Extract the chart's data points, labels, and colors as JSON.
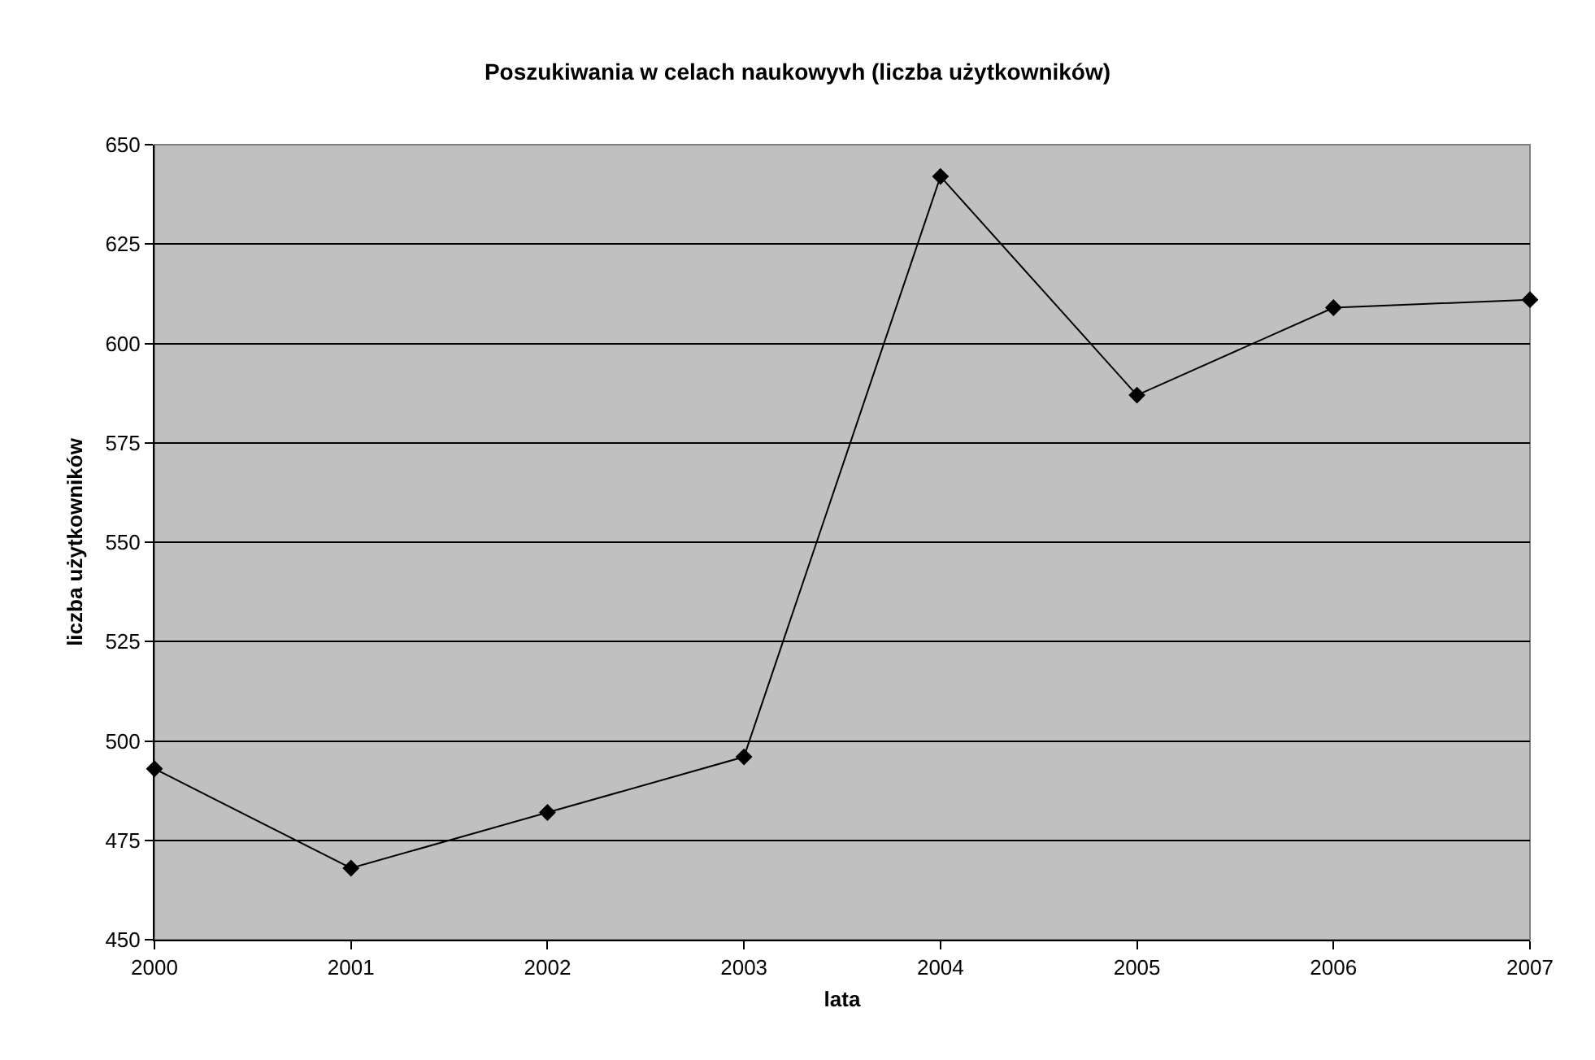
{
  "chart_data": {
    "type": "line",
    "title": "Poszukiwania w celach naukowyvh (liczba użytkowników)",
    "xlabel": "lata",
    "ylabel": "liczba użytkowników",
    "x": [
      2000,
      2001,
      2002,
      2003,
      2004,
      2005,
      2006,
      2007
    ],
    "series": [
      {
        "color": "#000000",
        "values": [
          493,
          468,
          482,
          496,
          642,
          587,
          609,
          611
        ]
      }
    ],
    "xlim": [
      2000,
      2007
    ],
    "xticks": [
      2000,
      2001,
      2002,
      2003,
      2004,
      2005,
      2006,
      2007
    ],
    "ylim": [
      450,
      650
    ],
    "yticks": [
      450,
      475,
      500,
      525,
      550,
      575,
      600,
      625,
      650
    ],
    "grid": "y",
    "marker": "diamond",
    "line_style": "solid"
  }
}
